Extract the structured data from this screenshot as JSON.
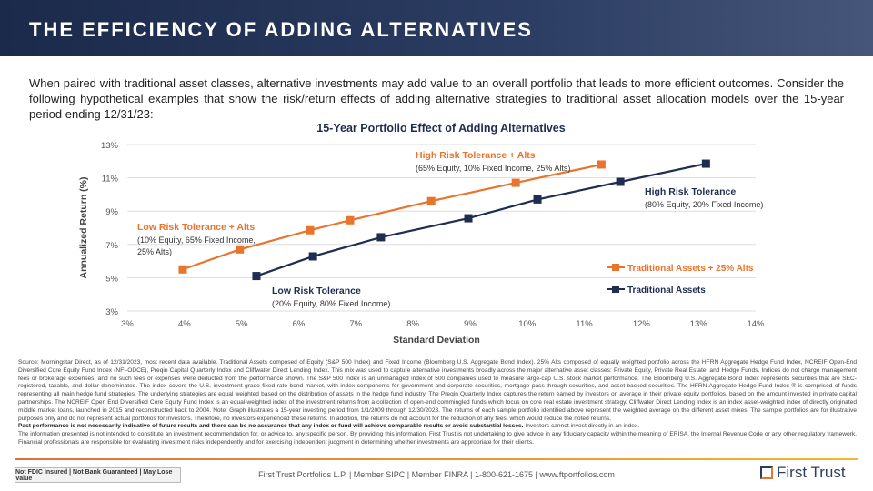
{
  "header": {
    "title": "THE EFFICIENCY OF ADDING ALTERNATIVES"
  },
  "intro": "When paired with traditional asset classes, alternative investments may add value to an overall portfolio that leads to more efficient outcomes. Consider the following hypothetical examples that show the risk/return effects of adding alternative strategies to traditional asset allocation models over the 15-year period ending 12/31/23:",
  "chart_data": {
    "type": "line",
    "title": "15-Year Portfolio Effect of Adding Alternatives",
    "xlabel": "Standard Deviation",
    "ylabel": "Annualized Return (%)",
    "xlim": [
      3,
      14
    ],
    "ylim": [
      3,
      13
    ],
    "xticks": [
      "3%",
      "4%",
      "5%",
      "6%",
      "7%",
      "8%",
      "9%",
      "10%",
      "11%",
      "12%",
      "13%",
      "14%"
    ],
    "yticks": [
      "3%",
      "5%",
      "7%",
      "9%",
      "11%",
      "13%"
    ],
    "grid": "horizontal",
    "legend": "right",
    "series": [
      {
        "name": "Traditional Assets + 25% Alts",
        "color": "#e9742c",
        "x": [
          3.97,
          4.97,
          6.2,
          6.9,
          8.32,
          9.8,
          11.3
        ],
        "y": [
          5.5,
          6.7,
          7.85,
          8.45,
          9.6,
          10.7,
          11.8
        ]
      },
      {
        "name": "Traditional Assets",
        "color": "#1e2d50",
        "x": [
          5.26,
          6.25,
          7.44,
          8.97,
          10.18,
          11.63,
          13.13
        ],
        "y": [
          5.1,
          6.28,
          7.43,
          8.57,
          9.7,
          10.76,
          11.85
        ]
      }
    ],
    "annotations": [
      {
        "title": "High Risk Tolerance + Alts",
        "sub": "(65% Equity, 10% Fixed Income, 25% Alts)",
        "color": "#e9742c"
      },
      {
        "title": "Low Risk Tolerance + Alts",
        "sub": "(10% Equity, 65% Fixed Income,",
        "sub2": "25% Alts)",
        "color": "#e9742c"
      },
      {
        "title": "High Risk Tolerance",
        "sub": "(80% Equity, 20% Fixed Income)",
        "color": "#1e2d50"
      },
      {
        "title": "Low Risk Tolerance",
        "sub": "(20% Equity, 80% Fixed Income)",
        "color": "#1e2d50"
      }
    ]
  },
  "notes": {
    "source": "Source: Morningstar Direct, as of 12/31/2023, most recent data available. Traditional Assets composed of Equity (S&P 500 Index) and Fixed Income (Bloomberg U.S. Aggregate Bond Index). 25% Alts composed of equally weighted portfolio across the HFRN Aggregate Hedge Fund Index, NCREIF Open-End Diversified Core Equity Fund Index (NFI-ODCE), Preqin Capital Quarterly Index and Cliffwater Direct Lending Index. This mix was used to capture alternative investments broadly across the major alternative asset classes: Private Equity, Private Real Estate, and Hedge Funds. Indices do not charge management fees or brokerage expenses, and no such fees or expenses were deducted from the performance shown. The S&P 500 Index is an unmanaged index of 500 companies used to measure large-cap U.S. stock market performance. The Bloomberg U.S. Aggregate Bond Index represents securities that are SEC-registered, taxable, and dollar denominated. The index covers the U.S. investment grade fixed rate bond market, with index components for government and corporate securities, mortgage pass-through securities, and asset-backed securities. The HFRN Aggregate Hedge Fund Index ® is comprised of funds representing all main hedge fund strategies. The underlying strategies are equal weighted based on the distribution of assets in the hedge fund industry. The Preqin Quarterly Index captures the return earned by investors on average in their private equity portfolios, based on the amount invested in private capital partnerships. The NCREIF Open End Diversified Core Equity Fund Index is an equal-weighted index of the investment returns from a collection of open-end commingled funds which focus on core real estate investment strategy. Cliffwater Direct Lending Index is an index asset-weighted index of directly originated middle market loans, launched in 2015 and reconstructed back to 2004. Note: Graph illustrates a 15-year investing period from 1/1/2009 through 12/30/2023. The returns of each sample portfolio identified above represent the weighted average on the different asset mixes. The sample portfolios are for illustrative purposes only and do not represent actual portfolios for investors. Therefore, no investors experienced these returns. In addition, the returns do not account for the reduction of any fees, which would reduce the noted returns.",
    "past_bold": "Past performance is not necessarily indicative of future results and there can be no assurance that any index or fund will achieve comparable results or avoid substantial losses.",
    "past_rest": " Investors cannot invest directly in an index.",
    "info": "The information presented is not intended to constitute an investment recommendation for, or advice to, any specific person. By providing this information, First Trust is not undertaking to give advice in any fiduciary capacity within the meaning of ERISA, the Internal Revenue Code or any other regulatory framework. Financial professionals are responsible for evaluating investment risks independently and for exercising independent judgment in determining whether investments are appropriate for their clients."
  },
  "footer": {
    "badge": "Not FDIC Insured | Not Bank Guaranteed | May Lose Value",
    "contact": "First Trust Portfolios L.P. | Member SIPC | Member FINRA | 1-800-621-1675 | www.ftportfolios.com",
    "logo": "First Trust"
  }
}
